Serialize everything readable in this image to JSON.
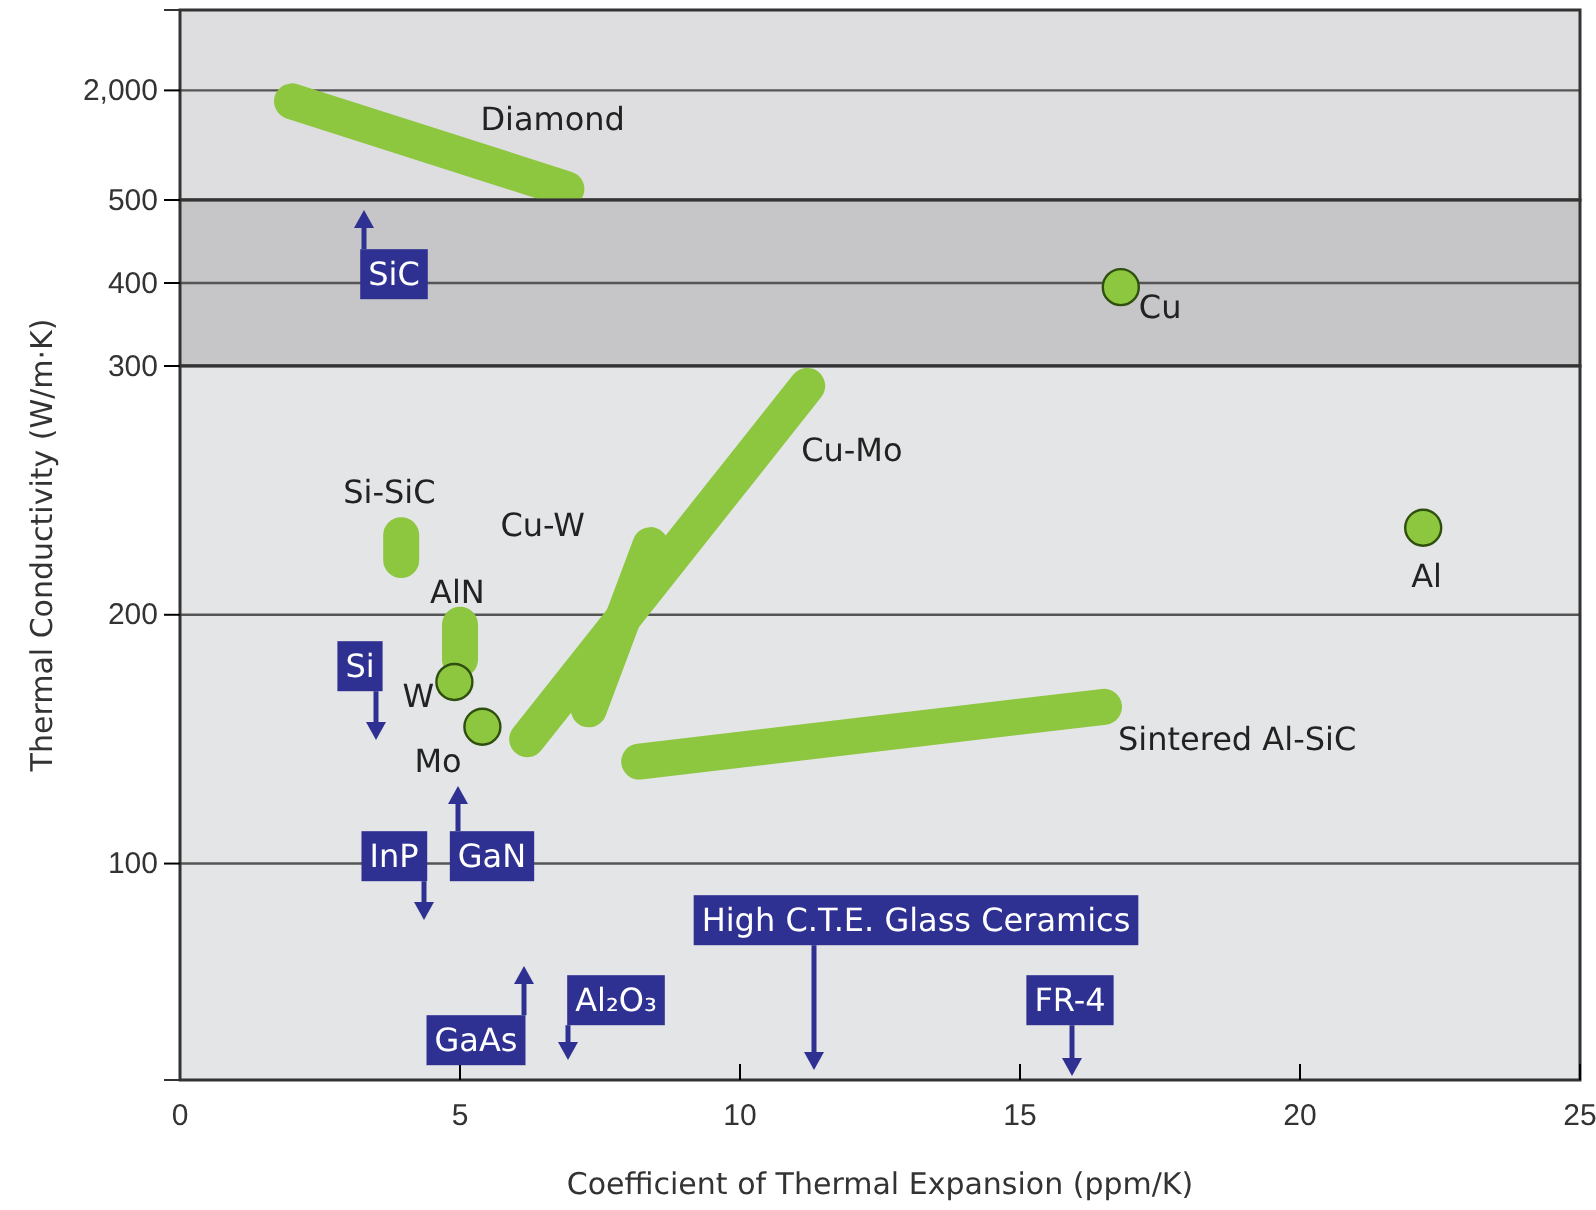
{
  "chart_data": [
    {
      "type": "line",
      "xlim": [
        0,
        25
      ],
      "ylim": [
        500,
        3100
      ],
      "yticks": [
        500,
        {
          "value": 2000,
          "label": "2,000"
        }
      ],
      "grid": "y",
      "tick_labels": "y",
      "line_style": "solid",
      "series": [
        {
          "name": "Diamond",
          "color": "#8dc63f",
          "x": [
            2.0,
            6.9
          ],
          "values": [
            1850,
            650
          ]
        }
      ]
    },
    {
      "type": "scatter",
      "xlim": [
        0,
        25
      ],
      "ylim": [
        300,
        500
      ],
      "yticks": [
        300,
        400,
        {
          "value": 500,
          "label": null
        }
      ],
      "grid": "y",
      "tick_labels": "y",
      "marker": "circle",
      "series": [
        {
          "name": "Cu",
          "color": "#8dc63f",
          "x": [
            16.8
          ],
          "values": [
            395
          ]
        }
      ],
      "annotations": [
        "SiC"
      ]
    },
    {
      "type": "line",
      "xlabel": "Coefficient of Thermal Expansion (ppm/K)",
      "ylabel": "Thermal Conductivity (W/m·K)",
      "xlim": [
        0,
        25
      ],
      "xticks": [
        0,
        5,
        10,
        15,
        20,
        25
      ],
      "ylim": [
        13,
        300
      ],
      "yticks": [
        100,
        200,
        {
          "value": 300,
          "label": null
        }
      ],
      "grid": "y",
      "line_style": "solid",
      "series": [
        {
          "name": "Al",
          "type": "scatter",
          "marker": "circle",
          "color": "#8dc63f",
          "x": [
            22.2
          ],
          "values": [
            235
          ]
        },
        {
          "name": "Cu-Mo",
          "color": "#8dc63f",
          "x": [
            6.2,
            11.2
          ],
          "values": [
            150,
            292
          ]
        },
        {
          "name": "Cu-W",
          "color": "#8dc63f",
          "x": [
            7.3,
            8.4
          ],
          "values": [
            162,
            228
          ]
        },
        {
          "name": "Si-SiC",
          "color": "#8dc63f",
          "x": [
            3.95,
            3.95
          ],
          "values": [
            232,
            222
          ]
        },
        {
          "name": "AlN",
          "color": "#8dc63f",
          "x": [
            5.0,
            5.0
          ],
          "values": [
            196,
            182
          ]
        },
        {
          "name": "W",
          "type": "scatter",
          "marker": "circle",
          "color": "#8dc63f",
          "x": [
            4.9
          ],
          "values": [
            173
          ]
        },
        {
          "name": "Mo",
          "type": "scatter",
          "marker": "circle",
          "color": "#8dc63f",
          "x": [
            5.4
          ],
          "values": [
            155
          ]
        },
        {
          "name": "Sintered Al-SiC",
          "color": "#8dc63f",
          "x": [
            8.2,
            16.5
          ],
          "values": [
            141,
            163
          ]
        }
      ],
      "annotations": [
        "Si",
        "InP",
        "GaN",
        "GaAs",
        "Al₂O₃",
        "High C.T.E. Glass Ceramics",
        "FR-4"
      ]
    }
  ]
}
